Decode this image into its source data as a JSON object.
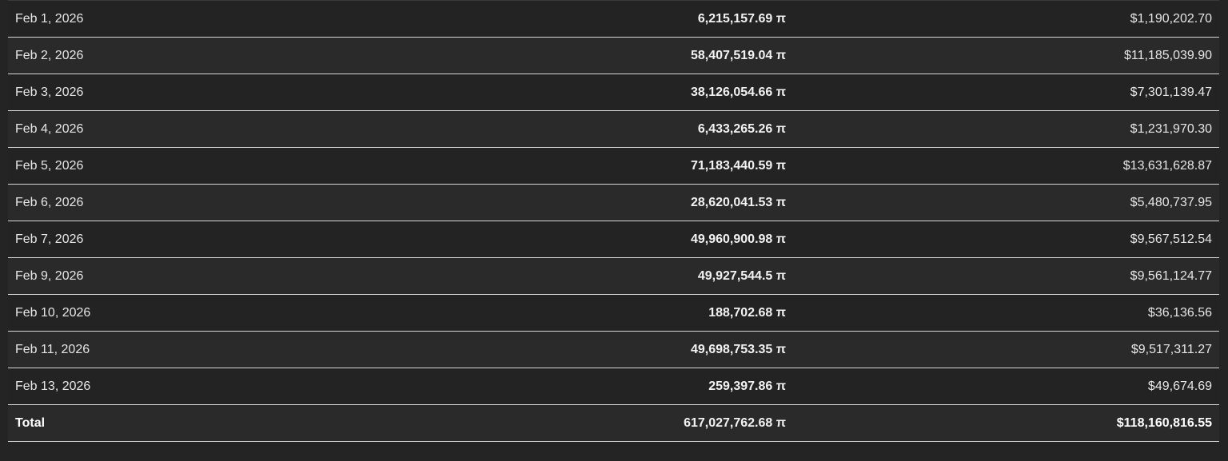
{
  "table": {
    "rows": [
      {
        "date": "Feb 1, 2026",
        "pi_amount": "6,215,157.69 π",
        "usd_amount": "$1,190,202.70"
      },
      {
        "date": "Feb 2, 2026",
        "pi_amount": "58,407,519.04 π",
        "usd_amount": "$11,185,039.90"
      },
      {
        "date": "Feb 3, 2026",
        "pi_amount": "38,126,054.66 π",
        "usd_amount": "$7,301,139.47"
      },
      {
        "date": "Feb 4, 2026",
        "pi_amount": "6,433,265.26 π",
        "usd_amount": "$1,231,970.30"
      },
      {
        "date": "Feb 5, 2026",
        "pi_amount": "71,183,440.59 π",
        "usd_amount": "$13,631,628.87"
      },
      {
        "date": "Feb 6, 2026",
        "pi_amount": "28,620,041.53 π",
        "usd_amount": "$5,480,737.95"
      },
      {
        "date": "Feb 7, 2026",
        "pi_amount": "49,960,900.98 π",
        "usd_amount": "$9,567,512.54"
      },
      {
        "date": "Feb 9, 2026",
        "pi_amount": "49,927,544.5 π",
        "usd_amount": "$9,561,124.77"
      },
      {
        "date": "Feb 10, 2026",
        "pi_amount": "188,702.68 π",
        "usd_amount": "$36,136.56"
      },
      {
        "date": "Feb 11, 2026",
        "pi_amount": "49,698,753.35 π",
        "usd_amount": "$9,517,311.27"
      },
      {
        "date": "Feb 13, 2026",
        "pi_amount": "259,397.86 π",
        "usd_amount": "$49,674.69"
      }
    ],
    "total": {
      "label": "Total",
      "pi_amount": "617,027,762.68 π",
      "usd_amount": "$118,160,816.55"
    }
  }
}
